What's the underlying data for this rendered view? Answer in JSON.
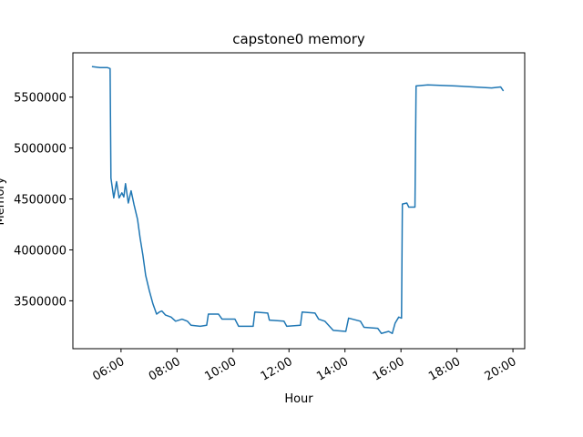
{
  "chart_data": {
    "type": "line",
    "title": "capstone0 memory",
    "x_label": "Hour",
    "y_label": "Memory",
    "xlim": [
      4.28,
      20.42
    ],
    "ylim": [
      3030000,
      5935000
    ],
    "xticks": [
      {
        "value": 6,
        "label": "06:00"
      },
      {
        "value": 8,
        "label": "08:00"
      },
      {
        "value": 10,
        "label": "10:00"
      },
      {
        "value": 12,
        "label": "12:00"
      },
      {
        "value": 14,
        "label": "14:00"
      },
      {
        "value": 16,
        "label": "16:00"
      },
      {
        "value": 18,
        "label": "18:00"
      },
      {
        "value": 20,
        "label": "20:00"
      }
    ],
    "yticks": [
      3500000,
      4000000,
      4500000,
      5000000,
      5500000
    ],
    "grid": false,
    "series": [
      {
        "color": "#1f77b4",
        "x": [
          4.96,
          5.25,
          5.51,
          5.61,
          5.64,
          5.74,
          5.84,
          5.93,
          6.03,
          6.1,
          6.16,
          6.26,
          6.36,
          6.46,
          6.59,
          6.68,
          6.78,
          6.88,
          7.01,
          7.14,
          7.27,
          7.37,
          7.46,
          7.59,
          7.79,
          7.95,
          8.18,
          8.37,
          8.5,
          8.83,
          9.06,
          9.12,
          9.48,
          9.61,
          10.07,
          10.2,
          10.72,
          10.78,
          11.24,
          11.3,
          11.82,
          11.92,
          12.41,
          12.47,
          12.93,
          13.06,
          13.28,
          13.58,
          14.03,
          14.13,
          14.55,
          14.68,
          15.17,
          15.3,
          15.56,
          15.69,
          15.79,
          15.92,
          16.02,
          16.05,
          16.21,
          16.28,
          16.5,
          16.54,
          16.96,
          17.93,
          18.59,
          19.24,
          19.56,
          19.66
        ],
        "values": [
          5800000,
          5790000,
          5790000,
          5780000,
          4705000,
          4510000,
          4670000,
          4510000,
          4560000,
          4520000,
          4650000,
          4460000,
          4580000,
          4450000,
          4300000,
          4120000,
          3950000,
          3750000,
          3600000,
          3470000,
          3370000,
          3390000,
          3400000,
          3360000,
          3340000,
          3300000,
          3320000,
          3300000,
          3260000,
          3250000,
          3260000,
          3370000,
          3370000,
          3320000,
          3320000,
          3250000,
          3250000,
          3390000,
          3380000,
          3310000,
          3300000,
          3250000,
          3260000,
          3390000,
          3380000,
          3320000,
          3300000,
          3210000,
          3200000,
          3330000,
          3300000,
          3240000,
          3230000,
          3180000,
          3200000,
          3180000,
          3280000,
          3340000,
          3330000,
          4450000,
          4460000,
          4420000,
          4420000,
          5610000,
          5620000,
          5610000,
          5600000,
          5590000,
          5600000,
          5560000
        ]
      }
    ]
  }
}
